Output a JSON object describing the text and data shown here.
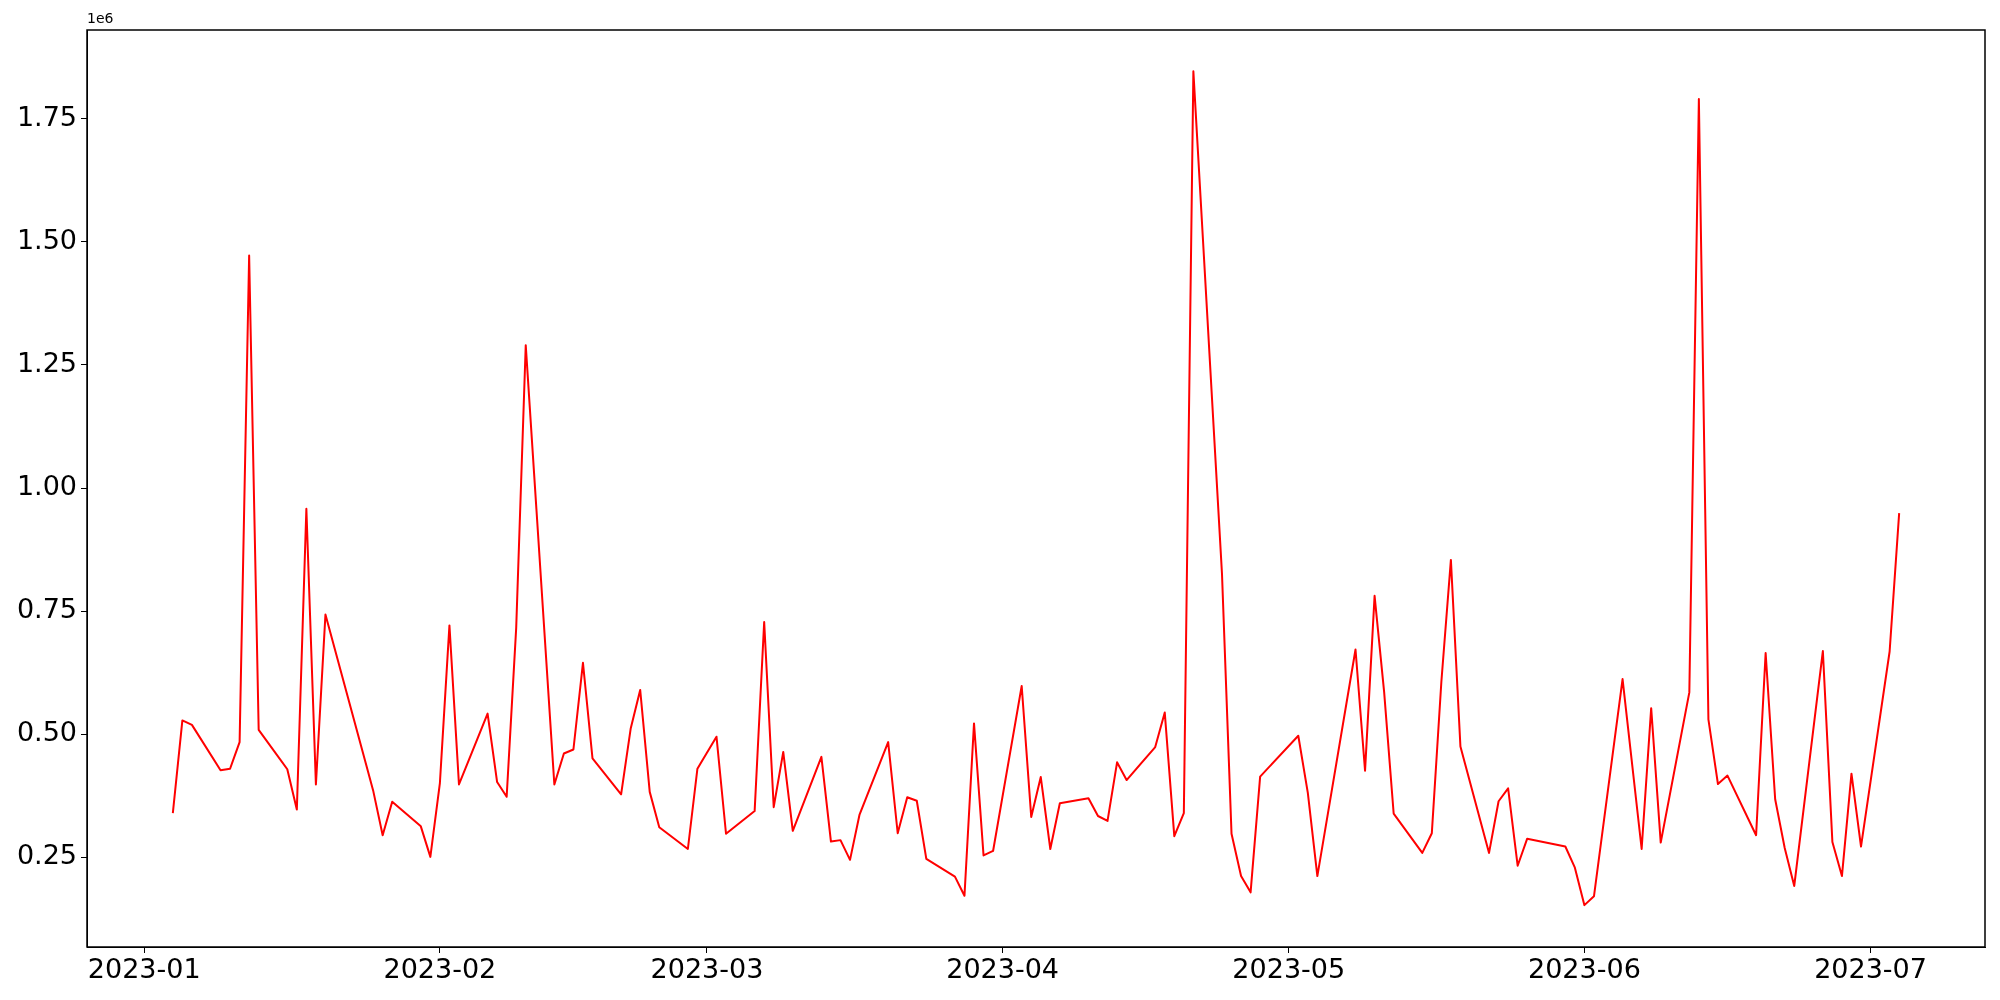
{
  "chart_data": {
    "type": "line",
    "annotations": [
      "1e6"
    ],
    "x": [
      "2023-01-04",
      "2023-01-05",
      "2023-01-06",
      "2023-01-09",
      "2023-01-10",
      "2023-01-11",
      "2023-01-12",
      "2023-01-13",
      "2023-01-16",
      "2023-01-17",
      "2023-01-18",
      "2023-01-19",
      "2023-01-20",
      "2023-01-25",
      "2023-01-26",
      "2023-01-27",
      "2023-01-30",
      "2023-01-31",
      "2023-02-01",
      "2023-02-02",
      "2023-02-03",
      "2023-02-06",
      "2023-02-07",
      "2023-02-08",
      "2023-02-09",
      "2023-02-10",
      "2023-02-13",
      "2023-02-14",
      "2023-02-15",
      "2023-02-16",
      "2023-02-17",
      "2023-02-20",
      "2023-02-21",
      "2023-02-22",
      "2023-02-23",
      "2023-02-24",
      "2023-02-27",
      "2023-02-28",
      "2023-03-02",
      "2023-03-03",
      "2023-03-06",
      "2023-03-07",
      "2023-03-08",
      "2023-03-09",
      "2023-03-10",
      "2023-03-13",
      "2023-03-14",
      "2023-03-15",
      "2023-03-16",
      "2023-03-17",
      "2023-03-20",
      "2023-03-21",
      "2023-03-22",
      "2023-03-23",
      "2023-03-24",
      "2023-03-27",
      "2023-03-28",
      "2023-03-29",
      "2023-03-30",
      "2023-03-31",
      "2023-04-03",
      "2023-04-04",
      "2023-04-05",
      "2023-04-06",
      "2023-04-07",
      "2023-04-10",
      "2023-04-11",
      "2023-04-12",
      "2023-04-13",
      "2023-04-14",
      "2023-04-17",
      "2023-04-18",
      "2023-04-19",
      "2023-04-20",
      "2023-04-21",
      "2023-04-24",
      "2023-04-25",
      "2023-04-26",
      "2023-04-27",
      "2023-04-28",
      "2023-05-02",
      "2023-05-03",
      "2023-05-04",
      "2023-05-08",
      "2023-05-09",
      "2023-05-10",
      "2023-05-11",
      "2023-05-12",
      "2023-05-15",
      "2023-05-16",
      "2023-05-17",
      "2023-05-18",
      "2023-05-19",
      "2023-05-22",
      "2023-05-23",
      "2023-05-24",
      "2023-05-25",
      "2023-05-26",
      "2023-05-30",
      "2023-05-31",
      "2023-06-01",
      "2023-06-02",
      "2023-06-05",
      "2023-06-07",
      "2023-06-08",
      "2023-06-09",
      "2023-06-12",
      "2023-06-13",
      "2023-06-14",
      "2023-06-15",
      "2023-06-16",
      "2023-06-19",
      "2023-06-20",
      "2023-06-21",
      "2023-06-22",
      "2023-06-23",
      "2023-06-26",
      "2023-06-27",
      "2023-06-28",
      "2023-06-29",
      "2023-06-30",
      "2023-07-03",
      "2023-07-04"
    ],
    "series": [
      {
        "color": "#ff0000",
        "values": [
          0.34,
          0.528,
          0.519,
          0.427,
          0.43,
          0.484,
          1.472,
          0.509,
          0.429,
          0.347,
          0.958,
          0.398,
          0.743,
          0.386,
          0.295,
          0.363,
          0.313,
          0.251,
          0.401,
          0.721,
          0.398,
          0.542,
          0.403,
          0.373,
          0.716,
          1.29,
          0.398,
          0.461,
          0.469,
          0.645,
          0.451,
          0.378,
          0.511,
          0.59,
          0.383,
          0.311,
          0.267,
          0.43,
          0.495,
          0.298,
          0.344,
          0.728,
          0.352,
          0.464,
          0.304,
          0.454,
          0.282,
          0.285,
          0.245,
          0.337,
          0.484,
          0.299,
          0.372,
          0.365,
          0.247,
          0.211,
          0.172,
          0.522,
          0.254,
          0.263,
          0.598,
          0.332,
          0.413,
          0.267,
          0.36,
          0.37,
          0.334,
          0.324,
          0.443,
          0.407,
          0.474,
          0.544,
          0.293,
          0.34,
          1.846,
          0.826,
          0.298,
          0.212,
          0.179,
          0.414,
          0.497,
          0.381,
          0.212,
          0.672,
          0.426,
          0.781,
          0.586,
          0.339,
          0.259,
          0.299,
          0.606,
          0.854,
          0.475,
          0.259,
          0.364,
          0.39,
          0.233,
          0.288,
          0.272,
          0.229,
          0.153,
          0.171,
          0.612,
          0.267,
          0.553,
          0.28,
          0.585,
          1.79,
          0.53,
          0.399,
          0.416,
          0.295,
          0.665,
          0.368,
          0.269,
          0.192,
          0.669,
          0.281,
          0.212,
          0.42,
          0.272,
          0.668,
          0.949
        ]
      }
    ],
    "xlim": [
      "2022-12-26",
      "2023-07-13"
    ],
    "xticks": [
      {
        "value": "2023-01-01",
        "label": "2023-01"
      },
      {
        "value": "2023-02-01",
        "label": "2023-02"
      },
      {
        "value": "2023-03-01",
        "label": "2023-03"
      },
      {
        "value": "2023-04-01",
        "label": "2023-04"
      },
      {
        "value": "2023-05-01",
        "label": "2023-05"
      },
      {
        "value": "2023-06-01",
        "label": "2023-06"
      },
      {
        "value": "2023-07-01",
        "label": "2023-07"
      }
    ],
    "ylim": [
      0.068,
      1.93
    ],
    "yticks": [
      0.25,
      {
        "value": 0.5,
        "label": "0.50"
      },
      0.75,
      {
        "value": 1,
        "label": "1.00"
      },
      1.25,
      {
        "value": 1.5,
        "label": "1.50"
      },
      1.75
    ]
  }
}
